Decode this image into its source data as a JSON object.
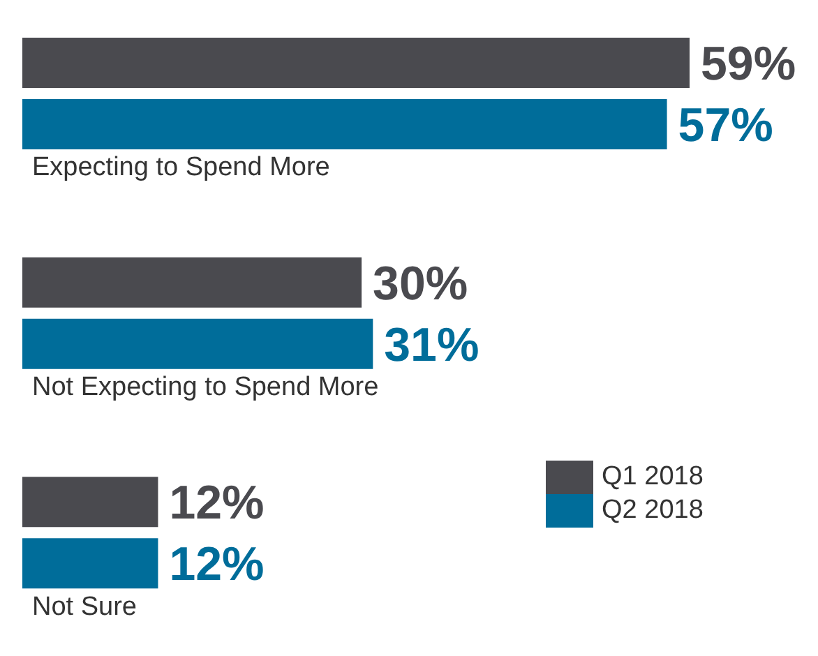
{
  "chart_data": {
    "type": "bar",
    "orientation": "horizontal",
    "categories": [
      "Expecting to Spend More",
      "Not Expecting to Spend More",
      "Not Sure"
    ],
    "series": [
      {
        "name": "Q1 2018",
        "color": "#4a4a4f",
        "values": [
          59,
          30,
          12
        ],
        "value_labels": [
          "59%",
          "30%",
          "12%"
        ]
      },
      {
        "name": "Q2 2018",
        "color": "#006d9a",
        "values": [
          57,
          31,
          12
        ],
        "value_labels": [
          "57%",
          "31%",
          "12%"
        ]
      }
    ],
    "legend": "bottom right"
  }
}
